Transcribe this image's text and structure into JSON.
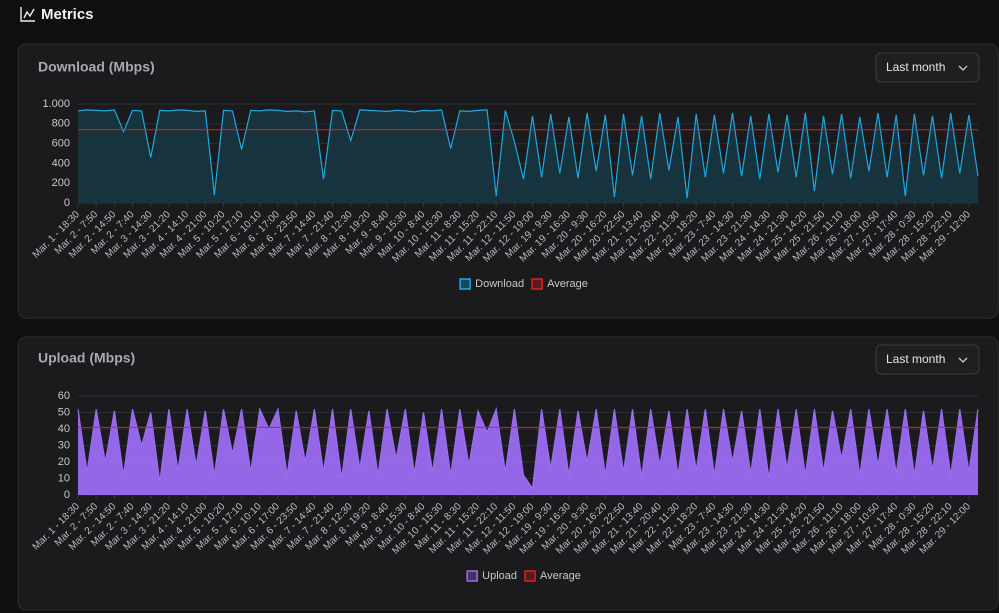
{
  "header": {
    "title": "Metrics"
  },
  "controls": [
    {
      "range": "Last month"
    },
    {
      "range": "Last month"
    }
  ],
  "chart_data": [
    {
      "type": "line",
      "title": "Download (Mbps)",
      "categories": [
        "Mar. 1 - 18:30",
        null,
        "Mar. 2 - 7:50",
        null,
        "Mar. 2 - 14:50",
        null,
        "Mar. 2 - 7:40",
        null,
        "Mar. 3 - 14:30",
        null,
        "Mar. 3 - 21:20",
        null,
        "Mar. 4 - 14:10",
        null,
        "Mar. 4 - 21:00",
        null,
        "Mar. 5 - 10:20",
        null,
        "Mar. 5 - 17:10",
        null,
        "Mar. 6 - 10:10",
        null,
        "Mar. 6 - 17:00",
        null,
        "Mar. 6 - 23:50",
        null,
        "Mar. 7 - 14:40",
        null,
        "Mar. 7 - 21:40",
        null,
        "Mar. 8 - 12:30",
        null,
        "Mar. 8 - 19:20",
        null,
        "Mar. 9 - 8:40",
        null,
        "Mar. 9 - 15:30",
        null,
        "Mar. 10 - 8:40",
        null,
        "Mar. 10 - 15:30",
        null,
        "Mar. 11 - 8:30",
        null,
        "Mar. 11 - 15:20",
        null,
        "Mar. 11 - 22:10",
        null,
        "Mar. 12 - 11:50",
        null,
        "Mar. 12 - 19:00",
        null,
        "Mar. 19 - 9:30",
        null,
        "Mar. 19 - 16:30",
        null,
        "Mar. 20 - 9:30",
        null,
        "Mar. 20 - 16:20",
        null,
        "Mar. 20 - 22:50",
        null,
        "Mar. 21 - 13:40",
        null,
        "Mar. 21 - 20:40",
        null,
        "Mar. 22 - 11:30",
        null,
        "Mar. 22 - 18:20",
        null,
        "Mar. 23 - 7:40",
        null,
        "Mar. 23 - 14:30",
        null,
        "Mar. 23 - 21:30",
        null,
        "Mar. 24 - 14:30",
        null,
        "Mar. 24 - 21:30",
        null,
        "Mar. 25 - 14:20",
        null,
        "Mar. 25 - 21:50",
        null,
        "Mar. 26 - 11:10",
        null,
        "Mar. 26 - 18:00",
        null,
        "Mar. 27 - 10:50",
        null,
        "Mar. 27 - 17:40",
        null,
        "Mar. 28 - 0:30",
        null,
        "Mar. 28 - 15:20",
        null,
        "Mar. 28 - 22:10",
        null,
        "Mar. 29 - 12:00",
        null
      ],
      "series": [
        {
          "name": "Download",
          "color": "#1fa8e0",
          "fill": "#173a47",
          "values": [
            930,
            940,
            935,
            930,
            940,
            720,
            935,
            930,
            460,
            935,
            930,
            940,
            935,
            925,
            930,
            80,
            935,
            930,
            540,
            935,
            930,
            940,
            935,
            925,
            930,
            920,
            930,
            240,
            935,
            930,
            630,
            940,
            935,
            930,
            925,
            935,
            930,
            920,
            935,
            930,
            940,
            550,
            930,
            925,
            935,
            940,
            70,
            935,
            620,
            240,
            880,
            260,
            900,
            300,
            870,
            250,
            910,
            320,
            890,
            60,
            900,
            280,
            880,
            240,
            910,
            330,
            870,
            50,
            900,
            260,
            890,
            300,
            910,
            270,
            880,
            240,
            900,
            310,
            890,
            260,
            910,
            120,
            880,
            290,
            900,
            250,
            870,
            320,
            910,
            260,
            890,
            70,
            900,
            280,
            880,
            250,
            910,
            300,
            890,
            270
          ]
        },
        {
          "name": "Average",
          "color": "#e02020",
          "values": [
            740,
            740,
            740,
            740,
            740,
            740,
            740,
            740,
            740,
            740,
            740,
            740,
            740,
            740,
            740,
            740,
            740,
            740,
            740,
            740,
            740,
            740,
            740,
            740,
            740,
            740,
            740,
            740,
            740,
            740,
            740,
            740,
            740,
            740,
            740,
            740,
            740,
            740,
            740,
            740,
            740,
            740,
            740,
            740,
            740,
            740,
            740,
            740,
            740,
            740,
            740,
            740,
            740,
            740,
            740,
            740,
            740,
            740,
            740,
            740,
            740,
            740,
            740,
            740,
            740,
            740,
            740,
            740,
            740,
            740,
            740,
            740,
            740,
            740,
            740,
            740,
            740,
            740,
            740,
            740,
            740,
            740,
            740,
            740,
            740,
            740,
            740,
            740,
            740,
            740,
            740,
            740,
            740,
            740,
            740,
            740,
            740,
            740,
            740,
            740
          ]
        }
      ],
      "ylim": [
        0,
        1000
      ],
      "yticks": [
        0,
        200,
        400,
        600,
        800,
        {
          "value": 1000,
          "label": "1.000"
        }
      ],
      "grid": true
    },
    {
      "type": "line",
      "title": "Upload (Mbps)",
      "categories": [
        "Mar. 1 - 18:30",
        null,
        "Mar. 2 - 7:50",
        null,
        "Mar. 2 - 14:50",
        null,
        "Mar. 2 - 7:40",
        null,
        "Mar. 3 - 14:30",
        null,
        "Mar. 3 - 21:20",
        null,
        "Mar. 4 - 14:10",
        null,
        "Mar. 4 - 21:00",
        null,
        "Mar. 5 - 10:20",
        null,
        "Mar. 5 - 17:10",
        null,
        "Mar. 6 - 10:10",
        null,
        "Mar. 6 - 17:00",
        null,
        "Mar. 6 - 23:50",
        null,
        "Mar. 7 - 14:40",
        null,
        "Mar. 7 - 21:40",
        null,
        "Mar. 8 - 12:30",
        null,
        "Mar. 8 - 19:20",
        null,
        "Mar. 9 - 8:40",
        null,
        "Mar. 9 - 15:30",
        null,
        "Mar. 10 - 8:40",
        null,
        "Mar. 10 - 15:30",
        null,
        "Mar. 11 - 8:30",
        null,
        "Mar. 11 - 15:20",
        null,
        "Mar. 11 - 22:10",
        null,
        "Mar. 12 - 11:50",
        null,
        "Mar. 12 - 19:00",
        null,
        "Mar. 19 - 9:30",
        null,
        "Mar. 19 - 16:30",
        null,
        "Mar. 20 - 9:30",
        null,
        "Mar. 20 - 16:20",
        null,
        "Mar. 20 - 22:50",
        null,
        "Mar. 21 - 13:40",
        null,
        "Mar. 21 - 20:40",
        null,
        "Mar. 22 - 11:30",
        null,
        "Mar. 22 - 18:20",
        null,
        "Mar. 23 - 7:40",
        null,
        "Mar. 23 - 14:30",
        null,
        "Mar. 23 - 21:30",
        null,
        "Mar. 24 - 14:30",
        null,
        "Mar. 24 - 21:30",
        null,
        "Mar. 25 - 14:20",
        null,
        "Mar. 25 - 21:50",
        null,
        "Mar. 26 - 11:10",
        null,
        "Mar. 26 - 18:00",
        null,
        "Mar. 27 - 10:50",
        null,
        "Mar. 27 - 17:40",
        null,
        "Mar. 28 - 0:30",
        null,
        "Mar. 28 - 15:20",
        null,
        "Mar. 28 - 22:10",
        null,
        "Mar. 29 - 12:00",
        null
      ],
      "series": [
        {
          "name": "Upload",
          "color": "#9a6cf0",
          "fill": "#9a6cf0",
          "values": [
            52,
            14,
            52,
            20,
            51,
            12,
            52,
            30,
            50,
            8,
            52,
            15,
            52,
            18,
            51,
            12,
            52,
            25,
            52,
            14,
            52,
            40,
            52,
            12,
            51,
            20,
            52,
            14,
            52,
            10,
            52,
            16,
            51,
            12,
            52,
            22,
            52,
            13,
            50,
            14,
            52,
            12,
            52,
            18,
            51,
            38,
            52,
            14,
            52,
            12,
            4,
            52,
            16,
            52,
            12,
            51,
            20,
            52,
            12,
            52,
            14,
            52,
            11,
            52,
            18,
            51,
            12,
            52,
            15,
            52,
            12,
            52,
            20,
            51,
            13,
            52,
            10,
            52,
            16,
            52,
            12,
            52,
            14,
            51,
            22,
            52,
            12,
            52,
            18,
            52,
            13,
            52,
            12,
            51,
            15,
            52,
            12,
            52,
            14,
            52
          ]
        },
        {
          "name": "Average",
          "color": "#e02020",
          "values": [
            41,
            41,
            41,
            41,
            41,
            41,
            41,
            41,
            41,
            41,
            41,
            41,
            41,
            41,
            41,
            41,
            41,
            41,
            41,
            41,
            41,
            41,
            41,
            41,
            41,
            41,
            41,
            41,
            41,
            41,
            41,
            41,
            41,
            41,
            41,
            41,
            41,
            41,
            41,
            41,
            41,
            41,
            41,
            41,
            41,
            41,
            41,
            41,
            41,
            41,
            41,
            41,
            41,
            41,
            41,
            41,
            41,
            41,
            41,
            41,
            41,
            41,
            41,
            41,
            41,
            41,
            41,
            41,
            41,
            41,
            41,
            41,
            41,
            41,
            41,
            41,
            41,
            41,
            41,
            41,
            41,
            41,
            41,
            41,
            41,
            41,
            41,
            41,
            41,
            41,
            41,
            41,
            41,
            41,
            41,
            41,
            41,
            41,
            41,
            41
          ]
        }
      ],
      "ylim": [
        0,
        60
      ],
      "yticks": [
        0,
        10,
        20,
        30,
        40,
        50,
        60
      ],
      "grid": true
    }
  ]
}
